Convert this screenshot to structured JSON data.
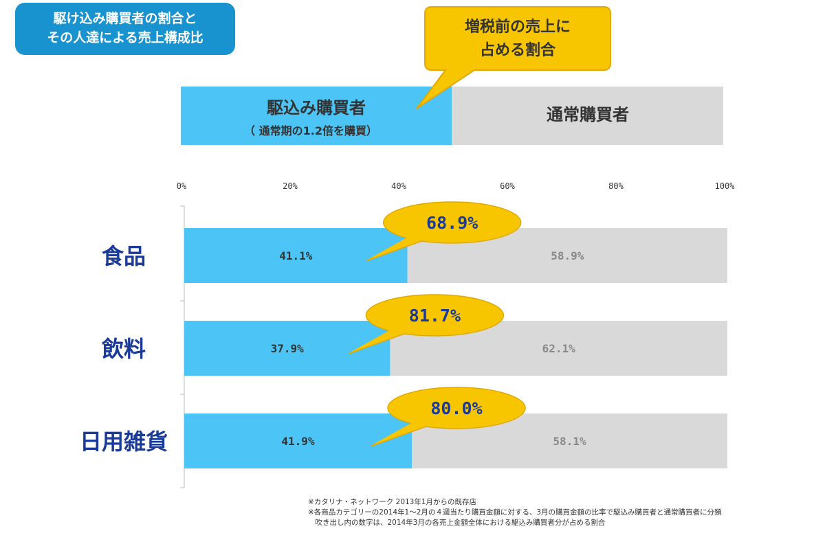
{
  "header": {
    "title_line1": "駆け込み購買者の割合と",
    "title_line2": "その人達による売上構成比",
    "callout_line1": "増税前の売上に",
    "callout_line2": "占める割合"
  },
  "legend": {
    "rush_label": "駆込み購買者",
    "rush_sub": "（ 通常期の1.2倍を購買）",
    "normal_label": "通常購買者"
  },
  "colors": {
    "rush": "#4cc5f6",
    "normal": "#d9d9d9",
    "callout": "#f7c600",
    "title": "#1893cf",
    "category": "#1a3a9a"
  },
  "chart_data": {
    "type": "bar",
    "orientation": "horizontal-stacked",
    "categories": [
      "食品",
      "飲料",
      "日用雑貨"
    ],
    "series": [
      {
        "name": "駆込み購買者",
        "values": [
          41.1,
          37.9,
          41.9
        ],
        "labels": [
          "41.1%",
          "37.9%",
          "41.9%"
        ]
      },
      {
        "name": "通常購買者",
        "values": [
          58.9,
          62.1,
          58.1
        ],
        "labels": [
          "58.9%",
          "62.1%",
          "58.1%"
        ]
      }
    ],
    "callouts": [
      "68.9%",
      "81.7%",
      "80.0%"
    ],
    "xlim": [
      0,
      100
    ],
    "xticks": [
      "0%",
      "20%",
      "40%",
      "60%",
      "80%",
      "100%"
    ]
  },
  "notes": [
    "※カタリナ・ネットワーク 2013年1月からの既存店",
    "※各商品カテゴリーの2014年1～2月の４週当たり購買金額に対する、3月の購買金額の比率で駆込み購買者と通常購買者に分類",
    "　吹き出し内の数字は、2014年3月の各売上金額全体における駆込み購買者分が占める割合"
  ]
}
